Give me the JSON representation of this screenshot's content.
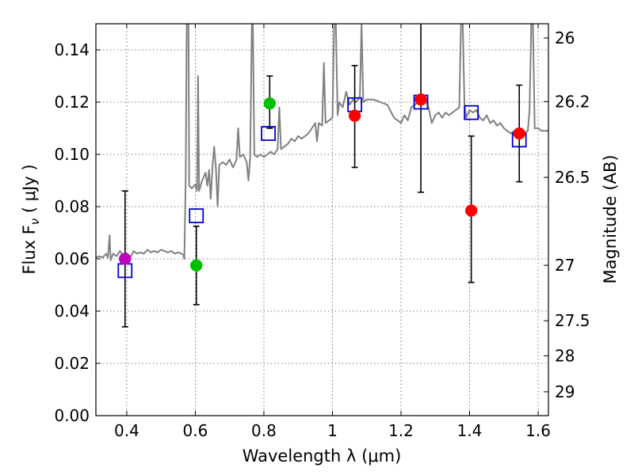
{
  "chart_data": {
    "type": "scatter",
    "xlabel": "Wavelength  λ (μm)",
    "ylabel": "Flux  F",
    "ylabel_sub": "ν",
    "ylabel_unit": "  ( μJy )",
    "y2label": "Magnitude (AB)",
    "xlim": [
      0.31,
      1.63
    ],
    "ylim": [
      0.0,
      0.15
    ],
    "grid": true,
    "x_ticks": [
      0.4,
      0.6,
      0.8,
      1.0,
      1.2,
      1.4,
      1.6
    ],
    "x_tick_labels": [
      "0.4",
      "0.6",
      "0.8",
      "1",
      "1.2",
      "1.4",
      "1.6"
    ],
    "y_ticks": [
      0.0,
      0.02,
      0.04,
      0.06,
      0.08,
      0.1,
      0.12,
      0.14
    ],
    "y_tick_labels": [
      "0.00",
      "0.02",
      "0.04",
      "0.06",
      "0.08",
      "0.10",
      "0.12",
      "0.14"
    ],
    "mag_ticks": [
      26,
      26.2,
      26.5,
      27,
      27.5,
      28,
      29
    ],
    "mag_tick_labels": [
      "26",
      "26.2",
      "26.5",
      "27",
      "27.5",
      "28",
      "29"
    ],
    "colors": {
      "spectrum": "#808080",
      "purple": "#bf00bf",
      "green": "#00bf00",
      "red": "#ff0000",
      "model": "#0000cc",
      "errorbar": "#000000",
      "grid": "#555555"
    },
    "spectrum": [
      [
        0.31,
        0.0605
      ],
      [
        0.32,
        0.061
      ],
      [
        0.33,
        0.0605
      ],
      [
        0.34,
        0.062
      ],
      [
        0.345,
        0.0605
      ],
      [
        0.35,
        0.069
      ],
      [
        0.353,
        0.0595
      ],
      [
        0.36,
        0.062
      ],
      [
        0.37,
        0.061
      ],
      [
        0.38,
        0.063
      ],
      [
        0.39,
        0.061
      ],
      [
        0.4,
        0.062
      ],
      [
        0.41,
        0.0605
      ],
      [
        0.42,
        0.063
      ],
      [
        0.43,
        0.062
      ],
      [
        0.44,
        0.0625
      ],
      [
        0.45,
        0.062
      ],
      [
        0.46,
        0.0635
      ],
      [
        0.47,
        0.0625
      ],
      [
        0.48,
        0.063
      ],
      [
        0.49,
        0.0625
      ],
      [
        0.5,
        0.0635
      ],
      [
        0.51,
        0.063
      ],
      [
        0.52,
        0.0625
      ],
      [
        0.53,
        0.063
      ],
      [
        0.54,
        0.062
      ],
      [
        0.55,
        0.0625
      ],
      [
        0.56,
        0.062
      ],
      [
        0.565,
        0.0615
      ],
      [
        0.568,
        0.06
      ],
      [
        0.572,
        0.09
      ],
      [
        0.575,
        0.15
      ],
      [
        0.58,
        0.15
      ],
      [
        0.582,
        0.088
      ],
      [
        0.59,
        0.087
      ],
      [
        0.6,
        0.0885
      ],
      [
        0.605,
        0.086
      ],
      [
        0.608,
        0.13
      ],
      [
        0.611,
        0.086
      ],
      [
        0.62,
        0.09
      ],
      [
        0.63,
        0.093
      ],
      [
        0.635,
        0.088
      ],
      [
        0.64,
        0.094
      ],
      [
        0.645,
        0.083
      ],
      [
        0.65,
        0.095
      ],
      [
        0.655,
        0.103
      ],
      [
        0.66,
        0.095
      ],
      [
        0.665,
        0.08
      ],
      [
        0.67,
        0.096
      ],
      [
        0.68,
        0.097
      ],
      [
        0.69,
        0.096
      ],
      [
        0.7,
        0.098
      ],
      [
        0.71,
        0.095
      ],
      [
        0.72,
        0.098
      ],
      [
        0.725,
        0.11
      ],
      [
        0.73,
        0.099
      ],
      [
        0.74,
        0.1
      ],
      [
        0.75,
        0.097
      ],
      [
        0.755,
        0.09
      ],
      [
        0.76,
        0.099
      ],
      [
        0.765,
        0.15
      ],
      [
        0.768,
        0.15
      ],
      [
        0.772,
        0.1
      ],
      [
        0.78,
        0.099
      ],
      [
        0.79,
        0.1
      ],
      [
        0.8,
        0.099
      ],
      [
        0.81,
        0.1
      ],
      [
        0.82,
        0.101
      ],
      [
        0.83,
        0.1
      ],
      [
        0.84,
        0.102
      ],
      [
        0.845,
        0.118
      ],
      [
        0.85,
        0.102
      ],
      [
        0.86,
        0.103
      ],
      [
        0.87,
        0.104
      ],
      [
        0.88,
        0.106
      ],
      [
        0.89,
        0.105
      ],
      [
        0.9,
        0.107
      ],
      [
        0.91,
        0.106
      ],
      [
        0.92,
        0.107
      ],
      [
        0.93,
        0.108
      ],
      [
        0.94,
        0.11
      ],
      [
        0.95,
        0.112
      ],
      [
        0.955,
        0.105
      ],
      [
        0.96,
        0.112
      ],
      [
        0.97,
        0.111
      ],
      [
        0.975,
        0.135
      ],
      [
        0.98,
        0.112
      ],
      [
        0.99,
        0.113
      ],
      [
        1.0,
        0.114
      ],
      [
        1.005,
        0.15
      ],
      [
        1.01,
        0.15
      ],
      [
        1.015,
        0.115
      ],
      [
        1.02,
        0.12
      ],
      [
        1.03,
        0.118
      ],
      [
        1.04,
        0.124
      ],
      [
        1.05,
        0.119
      ],
      [
        1.06,
        0.121
      ],
      [
        1.07,
        0.12
      ],
      [
        1.08,
        0.122
      ],
      [
        1.085,
        0.15
      ],
      [
        1.09,
        0.12
      ],
      [
        1.1,
        0.121
      ],
      [
        1.12,
        0.121
      ],
      [
        1.14,
        0.12
      ],
      [
        1.16,
        0.119
      ],
      [
        1.18,
        0.114
      ],
      [
        1.19,
        0.113
      ],
      [
        1.2,
        0.112
      ],
      [
        1.21,
        0.115
      ],
      [
        1.22,
        0.113
      ],
      [
        1.23,
        0.118
      ],
      [
        1.24,
        0.119
      ],
      [
        1.25,
        0.12
      ],
      [
        1.26,
        0.122
      ],
      [
        1.27,
        0.121
      ],
      [
        1.28,
        0.118
      ],
      [
        1.29,
        0.112
      ],
      [
        1.3,
        0.115
      ],
      [
        1.31,
        0.116
      ],
      [
        1.32,
        0.114
      ],
      [
        1.33,
        0.116
      ],
      [
        1.34,
        0.115
      ],
      [
        1.35,
        0.116
      ],
      [
        1.36,
        0.117
      ],
      [
        1.37,
        0.118
      ],
      [
        1.375,
        0.15
      ],
      [
        1.38,
        0.15
      ],
      [
        1.385,
        0.12
      ],
      [
        1.39,
        0.114
      ],
      [
        1.4,
        0.117
      ],
      [
        1.41,
        0.116
      ],
      [
        1.42,
        0.117
      ],
      [
        1.43,
        0.114
      ],
      [
        1.44,
        0.113
      ],
      [
        1.45,
        0.115
      ],
      [
        1.46,
        0.112
      ],
      [
        1.47,
        0.113
      ],
      [
        1.48,
        0.111
      ],
      [
        1.49,
        0.112
      ],
      [
        1.5,
        0.11
      ],
      [
        1.51,
        0.109
      ],
      [
        1.52,
        0.108
      ],
      [
        1.53,
        0.109
      ],
      [
        1.54,
        0.107
      ],
      [
        1.55,
        0.109
      ],
      [
        1.56,
        0.108
      ],
      [
        1.57,
        0.109
      ],
      [
        1.575,
        0.117
      ],
      [
        1.58,
        0.15
      ],
      [
        1.585,
        0.15
      ],
      [
        1.59,
        0.11
      ],
      [
        1.6,
        0.11
      ],
      [
        1.61,
        0.109
      ],
      [
        1.62,
        0.109
      ],
      [
        1.63,
        0.109
      ]
    ],
    "model_points": [
      {
        "x": 0.395,
        "y": 0.0555
      },
      {
        "x": 0.603,
        "y": 0.0765
      },
      {
        "x": 0.813,
        "y": 0.108
      },
      {
        "x": 1.065,
        "y": 0.119
      },
      {
        "x": 1.258,
        "y": 0.12
      },
      {
        "x": 1.405,
        "y": 0.116
      },
      {
        "x": 1.545,
        "y": 0.1055
      }
    ],
    "observed": [
      {
        "x": 0.395,
        "y": 0.06,
        "ylo": 0.034,
        "yhi": 0.086,
        "color": "purple"
      },
      {
        "x": 0.603,
        "y": 0.0575,
        "ylo": 0.0425,
        "yhi": 0.0725,
        "color": "green"
      },
      {
        "x": 0.817,
        "y": 0.1195,
        "ylo": 0.11,
        "yhi": 0.13,
        "color": "green"
      },
      {
        "x": 1.065,
        "y": 0.1148,
        "ylo": 0.095,
        "yhi": 0.134,
        "color": "red"
      },
      {
        "x": 1.258,
        "y": 0.121,
        "ylo": 0.0855,
        "yhi": 0.155,
        "color": "red"
      },
      {
        "x": 1.405,
        "y": 0.0785,
        "ylo": 0.051,
        "yhi": 0.107,
        "color": "red"
      },
      {
        "x": 1.545,
        "y": 0.108,
        "ylo": 0.0895,
        "yhi": 0.1265,
        "color": "red"
      }
    ]
  }
}
